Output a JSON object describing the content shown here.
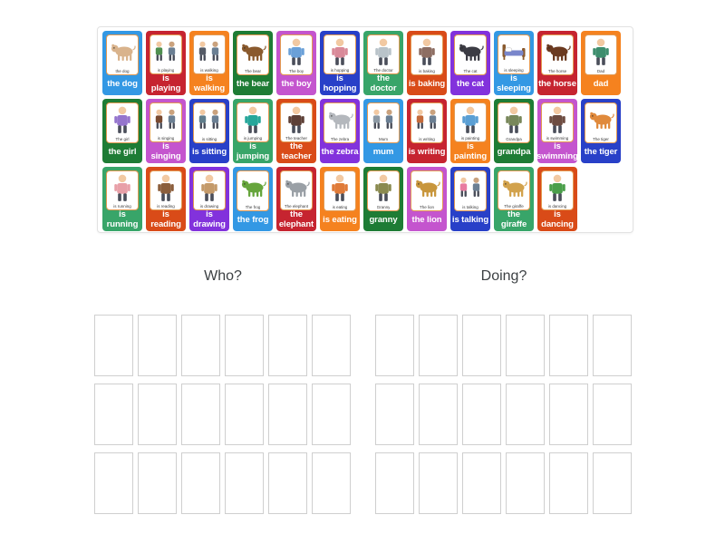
{
  "groups": [
    {
      "title": "Who?",
      "slot_count": 18,
      "slot_cols": 6,
      "slot_rows": 3
    },
    {
      "title": "Doing?",
      "slot_count": 18,
      "slot_cols": 6,
      "slot_rows": 3
    }
  ],
  "colors": {
    "card_blue": "#3398e4",
    "card_red": "#c62430",
    "card_orange": "#f5821f",
    "card_forest_green": "#1e7c35",
    "card_orchid": "#c455ce",
    "card_royal_blue": "#2840c8",
    "card_jade_green": "#38a569",
    "card_vermillion": "#d94b18",
    "card_violet": "#8232dc",
    "card_label_text": "#ffffff",
    "inner_box_border": "#e39a52",
    "tray_border": "#e2e2e2",
    "slot_border": "#cfcfcf",
    "heading_text": "#3c4043"
  },
  "tray": {
    "rows": [
      [
        {
          "label": "the dog",
          "caption": "the dog",
          "color": "#3398e4",
          "icon": "dog-illustration",
          "icon_type": "animal",
          "icon_color": "#d9b38c"
        },
        {
          "label": "is playing",
          "caption": "is playing",
          "color": "#c62430",
          "icon": "playing-children-illustration",
          "icon_type": "people",
          "icon_color": "#4f8f4f"
        },
        {
          "label": "is walking",
          "caption": "is walking",
          "color": "#f5821f",
          "icon": "walking-people-illustration",
          "icon_type": "people",
          "icon_color": "#555b66"
        },
        {
          "label": "the bear",
          "caption": "The bear",
          "color": "#1e7c35",
          "icon": "bear-illustration",
          "icon_type": "animal",
          "icon_color": "#8a5a2e"
        },
        {
          "label": "the boy",
          "caption": "The boy",
          "color": "#c455ce",
          "icon": "boy-illustration",
          "icon_type": "person",
          "icon_color": "#6aa0d8"
        },
        {
          "label": "is hopping",
          "caption": "is hopping",
          "color": "#2840c8",
          "icon": "hopping-child-illustration",
          "icon_type": "person",
          "icon_color": "#d98a99"
        },
        {
          "label": "the doctor",
          "caption": "The doctor",
          "color": "#38a569",
          "icon": "doctor-illustration",
          "icon_type": "person",
          "icon_color": "#b9c3c9"
        },
        {
          "label": "is baking",
          "caption": "is baking",
          "color": "#d94b18",
          "icon": "baking-illustration",
          "icon_type": "person",
          "icon_color": "#8d6e63"
        },
        {
          "label": "the cat",
          "caption": "The cat",
          "color": "#8232dc",
          "icon": "cat-illustration",
          "icon_type": "animal",
          "icon_color": "#3c3c44"
        },
        {
          "label": "is sleeping",
          "caption": "is sleeping",
          "color": "#3398e4",
          "icon": "sleeping-bed-illustration",
          "icon_type": "bed",
          "icon_color": "#7986cb"
        },
        {
          "label": "the horse",
          "caption": "The horse",
          "color": "#c62430",
          "icon": "horse-illustration",
          "icon_type": "animal",
          "icon_color": "#6b3a20"
        },
        {
          "label": "dad",
          "caption": "Dad",
          "color": "#f5821f",
          "icon": "dad-illustration",
          "icon_type": "person",
          "icon_color": "#3e8e6e"
        }
      ],
      [
        {
          "label": "the girl",
          "caption": "The girl",
          "color": "#1e7c35",
          "icon": "girl-illustration",
          "icon_type": "person",
          "icon_color": "#9575cd"
        },
        {
          "label": "is singing",
          "caption": "is singing",
          "color": "#c455ce",
          "icon": "singing-children-illustration",
          "icon_type": "people",
          "icon_color": "#7a4a30"
        },
        {
          "label": "is sitting",
          "caption": "is sitting",
          "color": "#2840c8",
          "icon": "sitting-children-illustration",
          "icon_type": "people",
          "icon_color": "#607d8b"
        },
        {
          "label": "is jumping",
          "caption": "is jumping",
          "color": "#38a569",
          "icon": "jumping-child-illustration",
          "icon_type": "person",
          "icon_color": "#26a69a"
        },
        {
          "label": "the teacher",
          "caption": "The teacher",
          "color": "#d94b18",
          "icon": "teacher-illustration",
          "icon_type": "person",
          "icon_color": "#5d4037"
        },
        {
          "label": "the zebra",
          "caption": "The zebra",
          "color": "#8232dc",
          "icon": "zebra-illustration",
          "icon_type": "animal",
          "icon_color": "#b4b8bd"
        },
        {
          "label": "mum",
          "caption": "Mum",
          "color": "#3398e4",
          "icon": "mum-illustration",
          "icon_type": "people",
          "icon_color": "#8d9aa5"
        },
        {
          "label": "is writing",
          "caption": "is writing",
          "color": "#c62430",
          "icon": "writing-children-illustration",
          "icon_type": "people",
          "icon_color": "#c46a3a"
        },
        {
          "label": "is painting",
          "caption": "is painting",
          "color": "#f5821f",
          "icon": "painting-child-illustration",
          "icon_type": "person",
          "icon_color": "#5a9fd4"
        },
        {
          "label": "grandpa",
          "caption": "Grandpa",
          "color": "#1e7c35",
          "icon": "grandpa-illustration",
          "icon_type": "person",
          "icon_color": "#78875a"
        },
        {
          "label": "is swimming",
          "caption": "is swimming",
          "color": "#c455ce",
          "icon": "swimming-illustration",
          "icon_type": "person",
          "icon_color": "#6d4c41"
        },
        {
          "label": "the tiger",
          "caption": "The tiger",
          "color": "#2840c8",
          "icon": "tiger-illustration",
          "icon_type": "animal",
          "icon_color": "#e08a3c"
        }
      ],
      [
        {
          "label": "is running",
          "caption": "is running",
          "color": "#38a569",
          "icon": "running-child-illustration",
          "icon_type": "person",
          "icon_color": "#e8a0a8"
        },
        {
          "label": "is reading",
          "caption": "is reading",
          "color": "#d94b18",
          "icon": "reading-child-illustration",
          "icon_type": "person",
          "icon_color": "#8b5e3c"
        },
        {
          "label": "is drawing",
          "caption": "is drawing",
          "color": "#8232dc",
          "icon": "drawing-hand-illustration",
          "icon_type": "person",
          "icon_color": "#c49a6a"
        },
        {
          "label": "the frog",
          "caption": "The frog",
          "color": "#3398e4",
          "icon": "frog-illustration",
          "icon_type": "animal",
          "icon_color": "#66a53c"
        },
        {
          "label": "the elephant",
          "caption": "The elephant",
          "color": "#c62430",
          "icon": "elephant-illustration",
          "icon_type": "animal",
          "icon_color": "#9aa0a6"
        },
        {
          "label": "is eating",
          "caption": "is eating",
          "color": "#f5821f",
          "icon": "eating-child-illustration",
          "icon_type": "person",
          "icon_color": "#e07b39"
        },
        {
          "label": "granny",
          "caption": "Granny",
          "color": "#1e7c35",
          "icon": "granny-illustration",
          "icon_type": "person",
          "icon_color": "#8a8a4f"
        },
        {
          "label": "the lion",
          "caption": "The lion",
          "color": "#c455ce",
          "icon": "lion-illustration",
          "icon_type": "animal",
          "icon_color": "#c8963c"
        },
        {
          "label": "is talking",
          "caption": "is talking",
          "color": "#2840c8",
          "icon": "talking-children-illustration",
          "icon_type": "people",
          "icon_color": "#e87ba0"
        },
        {
          "label": "the giraffe",
          "caption": "The giraffe",
          "color": "#38a569",
          "icon": "giraffe-illustration",
          "icon_type": "animal",
          "icon_color": "#d2a24c"
        },
        {
          "label": "is dancing",
          "caption": "is dancing",
          "color": "#d94b18",
          "icon": "dancing-child-illustration",
          "icon_type": "person",
          "icon_color": "#4a9f4a"
        }
      ]
    ]
  }
}
